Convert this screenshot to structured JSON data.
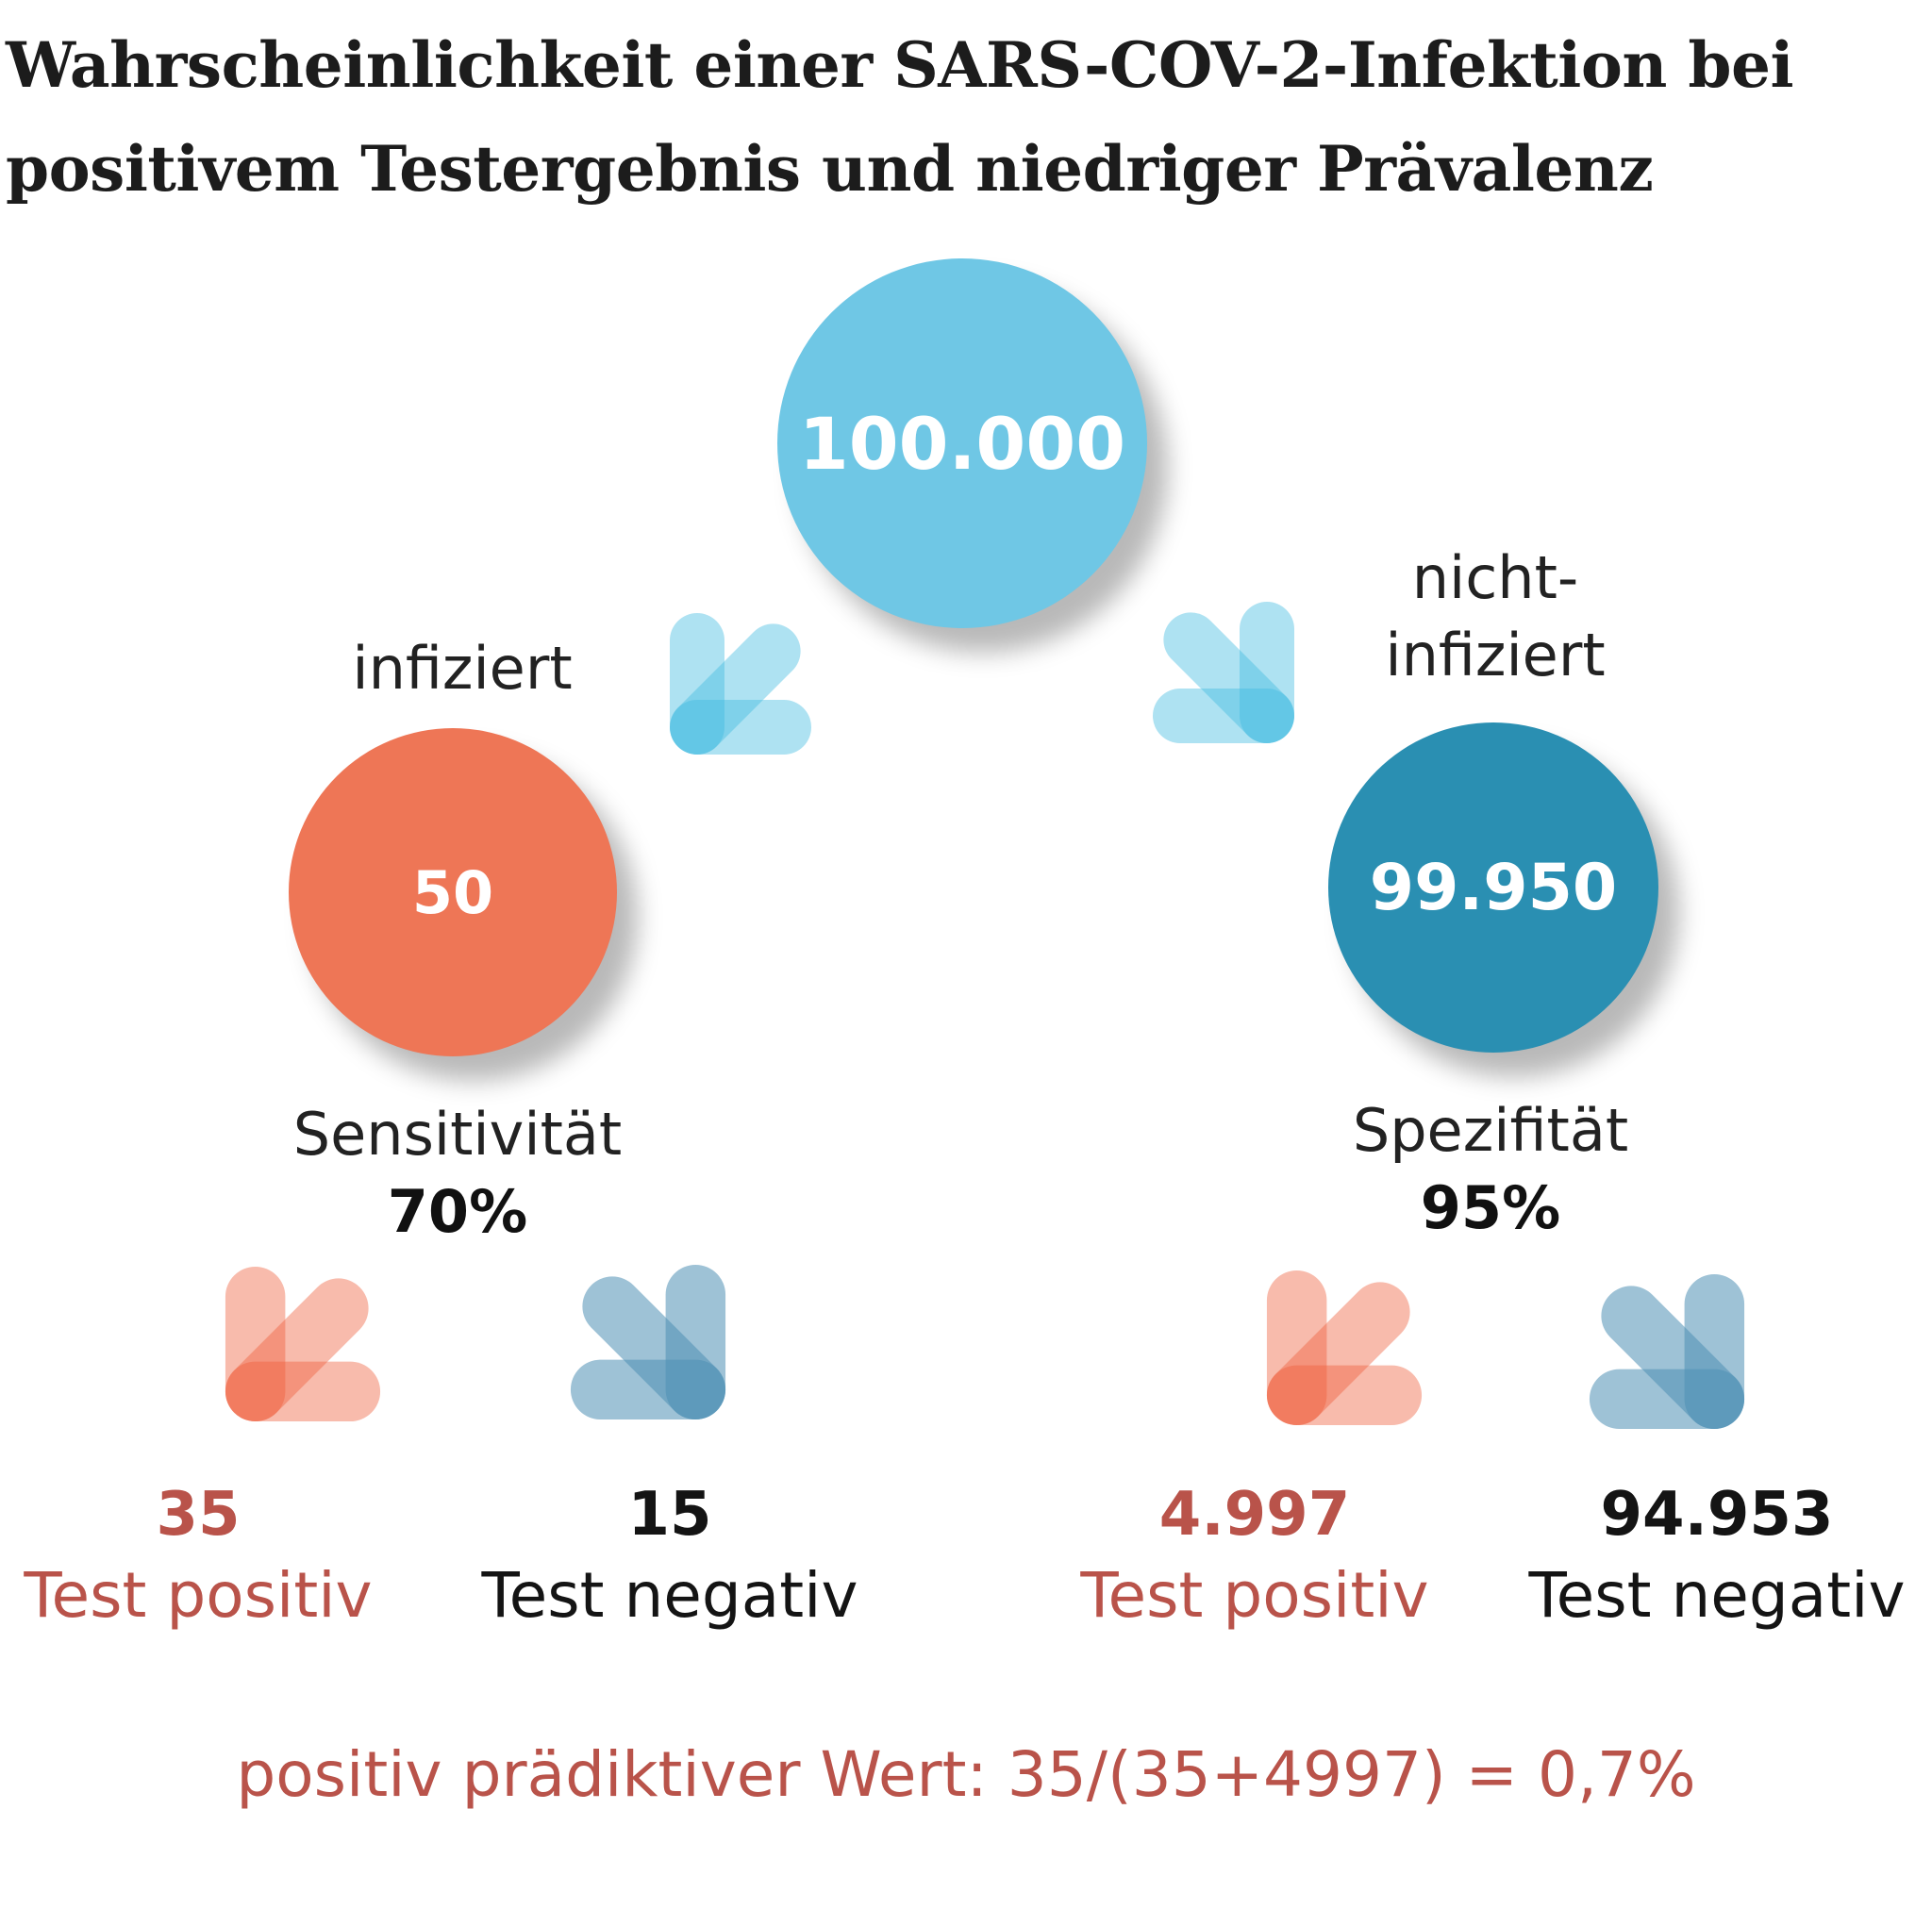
{
  "title": {
    "line1": "Wahrscheinlichkeit einer SARS-COV-2-Infektion bei",
    "line2": "positivem Testergebnis und niedriger Prävalenz"
  },
  "root": {
    "value": "100.000"
  },
  "infected": {
    "label": "infiziert",
    "value": "50",
    "metric_label": "Sensitivität",
    "metric_value": "70%",
    "positive": {
      "value": "35",
      "label": "Test positiv"
    },
    "negative": {
      "value": "15",
      "label": "Test negativ"
    }
  },
  "not_infected": {
    "label_line1": "nicht-",
    "label_line2": "infiziert",
    "value": "99.950",
    "metric_label": "Spezifität",
    "metric_value": "95%",
    "positive": {
      "value": "4.997",
      "label": "Test positiv"
    },
    "negative": {
      "value": "94.953",
      "label": "Test negativ"
    }
  },
  "ppv_formula": "positiv prädiktiver Wert: 35/(35+4997) = 0,7%",
  "colors": {
    "root": "#6fc7e5",
    "infected": "#ee7656",
    "not_infected": "#2a8fb2",
    "arrow_light_blue": "#3dbbe0",
    "arrow_orange": "#ee5c3a",
    "arrow_steel_blue": "#4e8fb5",
    "positive_text": "#b9534a"
  }
}
